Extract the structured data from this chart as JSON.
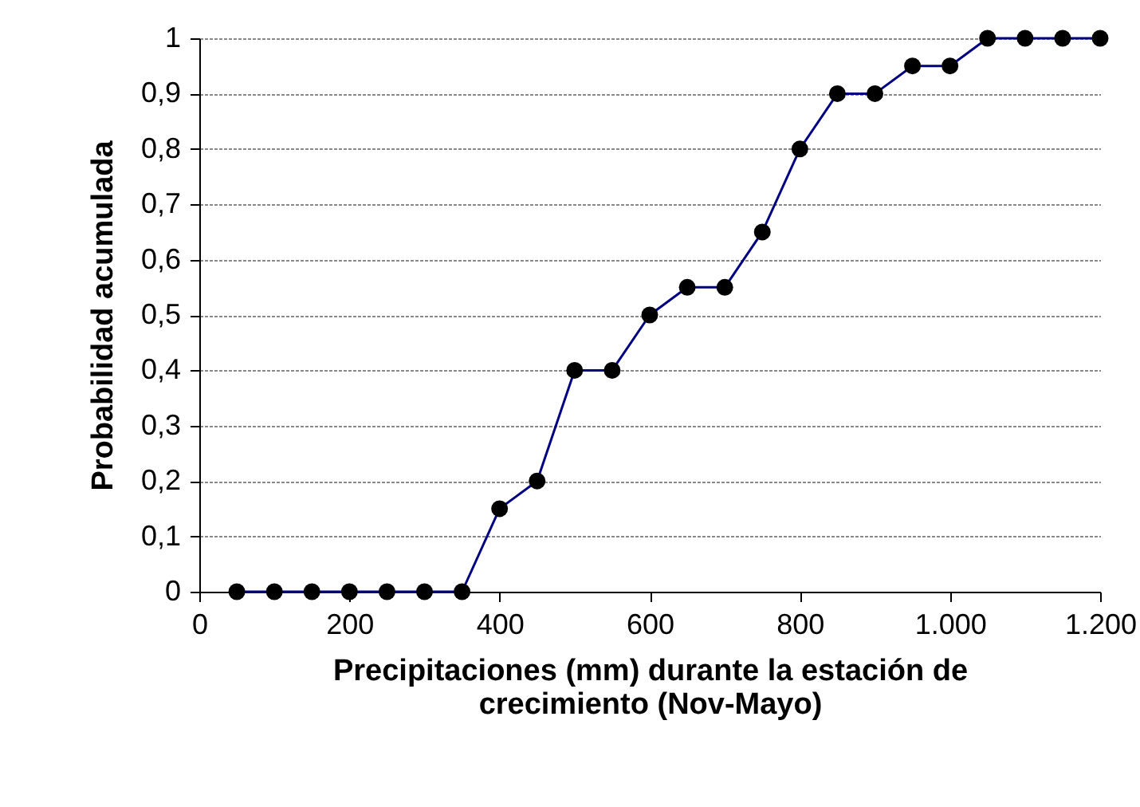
{
  "chart_data": {
    "type": "line",
    "xlabel": "Precipitaciones (mm) durante la estación de crecimiento (Nov-Mayo)",
    "ylabel": "Probabilidad acumulada",
    "x": [
      50,
      100,
      150,
      200,
      250,
      300,
      350,
      400,
      450,
      500,
      550,
      600,
      650,
      700,
      750,
      800,
      850,
      900,
      950,
      1000,
      1050,
      1100,
      1150,
      1200
    ],
    "series": [
      {
        "color": "#000080",
        "values": [
          0,
          0,
          0,
          0,
          0,
          0,
          0,
          0.15,
          0.2,
          0.4,
          0.4,
          0.5,
          0.55,
          0.55,
          0.65,
          0.8,
          0.9,
          0.9,
          0.95,
          0.95,
          1,
          1,
          1,
          1
        ]
      }
    ],
    "xlim": [
      0,
      1200
    ],
    "xticks": [
      0,
      200,
      400,
      600,
      800,
      {
        "value": 1000,
        "label": "1.000"
      },
      {
        "value": 1200,
        "label": "1.200"
      }
    ],
    "ylim": [
      0,
      1
    ],
    "yticks": [
      0,
      {
        "value": 0.1,
        "label": "0,1"
      },
      {
        "value": 0.2,
        "label": "0,2"
      },
      {
        "value": 0.3,
        "label": "0,3"
      },
      {
        "value": 0.4,
        "label": "0,4"
      },
      {
        "value": 0.5,
        "label": "0,5"
      },
      {
        "value": 0.6,
        "label": "0,6"
      },
      {
        "value": 0.7,
        "label": "0,7"
      },
      {
        "value": 0.8,
        "label": "0,8"
      },
      {
        "value": 0.9,
        "label": "0,9"
      },
      1
    ],
    "grid": "y",
    "marker": "circle",
    "line_style": "solid"
  }
}
